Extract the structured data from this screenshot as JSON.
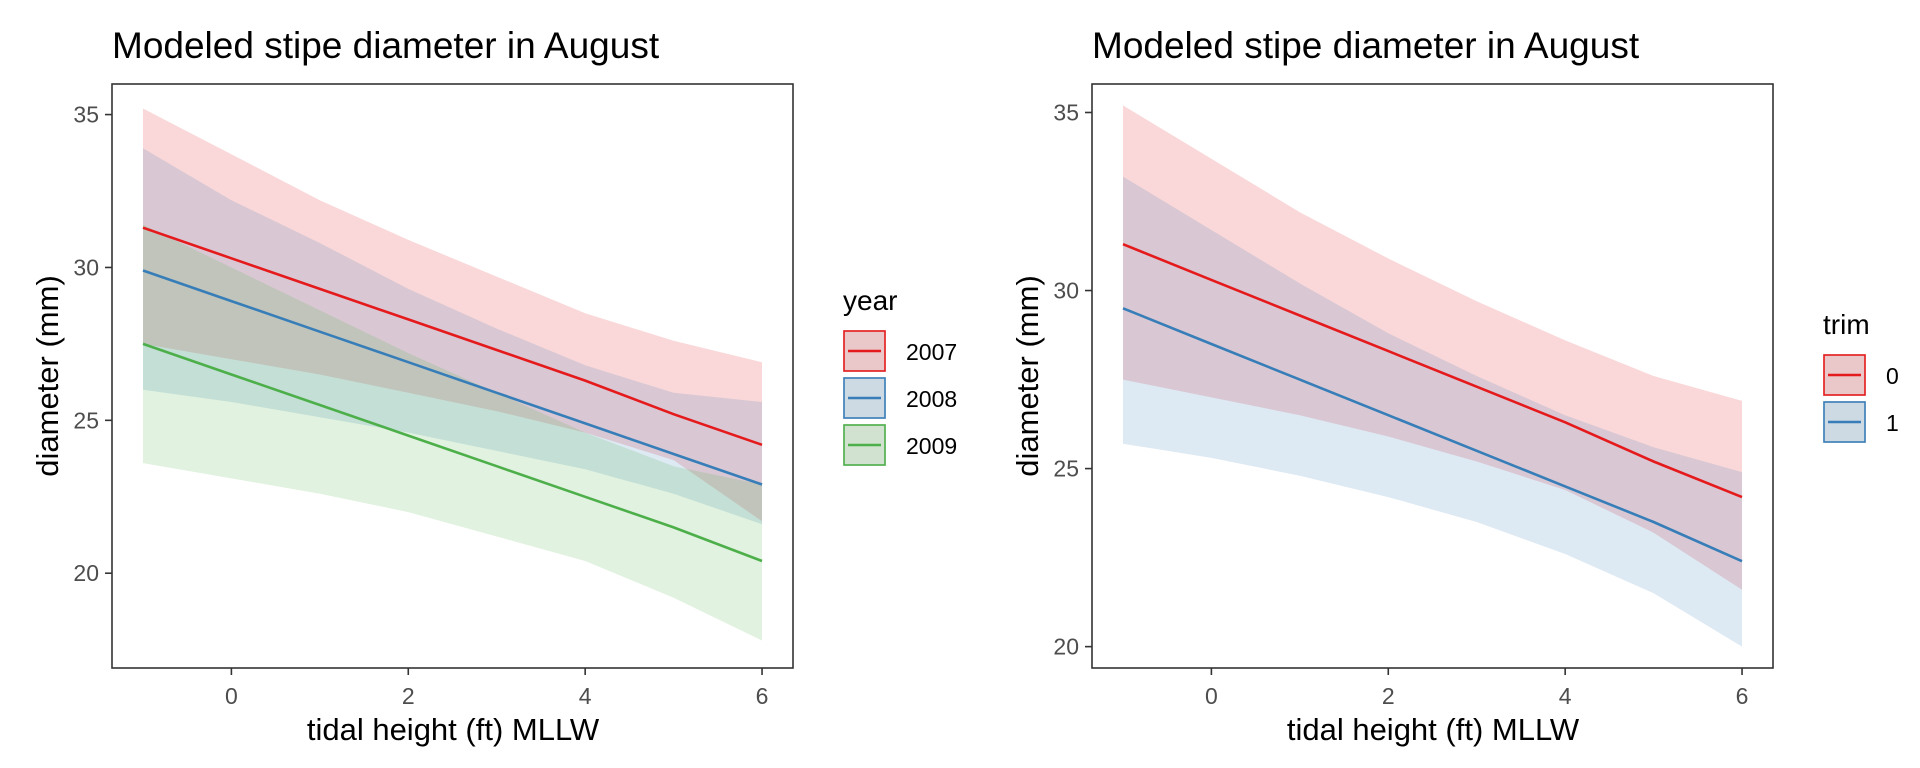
{
  "chart_data": [
    {
      "type": "line",
      "title": "Modeled stipe diameter in August",
      "xlabel": "tidal height (ft) MLLW",
      "ylabel": "diameter (mm)",
      "xlim": [
        -1.35,
        6.35
      ],
      "ylim": [
        16.9,
        36.0
      ],
      "xticks": [
        0,
        2,
        4,
        6
      ],
      "yticks": [
        20,
        25,
        30,
        35
      ],
      "grid": false,
      "legend_title": "year",
      "legend_position": "right",
      "x": [
        -1,
        0,
        1,
        2,
        3,
        4,
        5,
        6
      ],
      "series": [
        {
          "name": "2007",
          "color": "#e41a1c",
          "fill": "#f9d0d3",
          "values": [
            31.3,
            30.3,
            29.3,
            28.3,
            27.3,
            26.3,
            25.2,
            24.2
          ],
          "lower": [
            27.5,
            27.0,
            26.5,
            25.9,
            25.3,
            24.6,
            23.7,
            21.7
          ],
          "upper": [
            35.2,
            33.7,
            32.2,
            30.9,
            29.7,
            28.5,
            27.6,
            26.9
          ]
        },
        {
          "name": "2008",
          "color": "#377eb8",
          "fill": "#d4dee9",
          "values": [
            29.9,
            28.9,
            27.9,
            26.9,
            25.9,
            24.9,
            23.9,
            22.9
          ],
          "lower": [
            26.0,
            25.6,
            25.1,
            24.6,
            24.0,
            23.4,
            22.6,
            21.6
          ],
          "upper": [
            33.9,
            32.2,
            30.8,
            29.3,
            28.0,
            26.8,
            25.9,
            25.6
          ]
        },
        {
          "name": "2009",
          "color": "#4daf4a",
          "fill": "#d8eed7",
          "values": [
            27.5,
            26.5,
            25.5,
            24.5,
            23.5,
            22.5,
            21.5,
            20.4
          ],
          "lower": [
            23.6,
            23.1,
            22.6,
            22.0,
            21.2,
            20.4,
            19.2,
            17.8
          ],
          "upper": [
            31.4,
            30.0,
            28.6,
            27.2,
            25.9,
            24.6,
            23.5,
            22.9
          ]
        }
      ]
    },
    {
      "type": "line",
      "title": "Modeled stipe diameter in August",
      "xlabel": "tidal height (ft) MLLW",
      "ylabel": "diameter (mm)",
      "xlim": [
        -1.35,
        6.35
      ],
      "ylim": [
        19.4,
        35.8
      ],
      "xticks": [
        0,
        2,
        4,
        6
      ],
      "yticks": [
        20,
        25,
        30,
        35
      ],
      "grid": false,
      "legend_title": "trim",
      "legend_position": "right",
      "x": [
        -1,
        0,
        1,
        2,
        3,
        4,
        5,
        6
      ],
      "series": [
        {
          "name": "0",
          "color": "#e41a1c",
          "fill": "#f9d0d3",
          "values": [
            31.3,
            30.3,
            29.3,
            28.3,
            27.3,
            26.3,
            25.2,
            24.2
          ],
          "lower": [
            27.5,
            27.0,
            26.5,
            25.9,
            25.2,
            24.4,
            23.2,
            21.6
          ],
          "upper": [
            35.2,
            33.7,
            32.2,
            30.9,
            29.7,
            28.6,
            27.6,
            26.9
          ]
        },
        {
          "name": "1",
          "color": "#377eb8",
          "fill": "#dfe8f2",
          "values": [
            29.5,
            28.5,
            27.5,
            26.5,
            25.5,
            24.5,
            23.5,
            22.4
          ],
          "lower": [
            25.7,
            25.3,
            24.8,
            24.2,
            23.5,
            22.6,
            21.5,
            20.0
          ],
          "upper": [
            33.2,
            31.7,
            30.2,
            28.8,
            27.6,
            26.5,
            25.6,
            24.9
          ]
        }
      ]
    }
  ]
}
